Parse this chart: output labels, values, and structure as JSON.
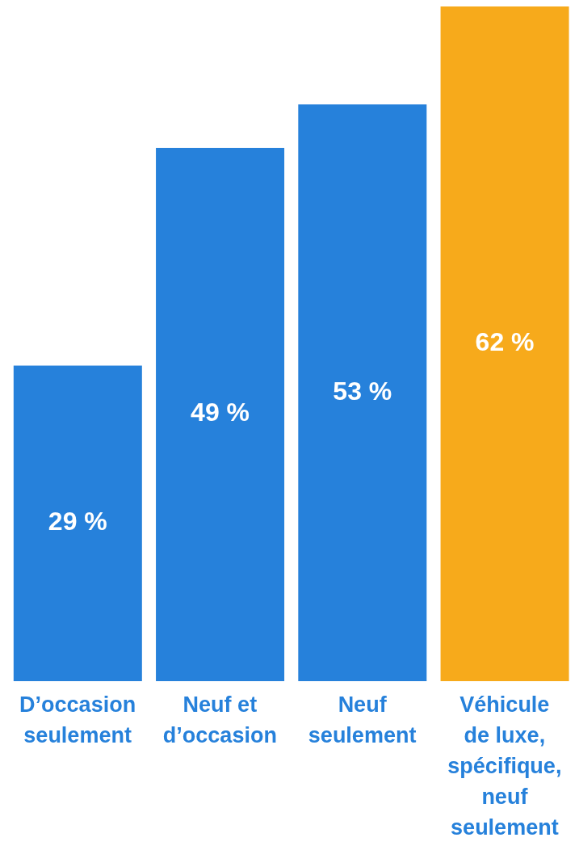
{
  "chart_data": {
    "type": "bar",
    "categories": [
      "D’occasion seulement",
      "Neuf et d’occasion",
      "Neuf seulement",
      "Véhicule de luxe, spécifique, neuf seulement"
    ],
    "values": [
      29,
      49,
      53,
      62
    ],
    "colors": [
      "#2681db",
      "#2681db",
      "#2681db",
      "#f7aa1b"
    ],
    "value_labels": [
      "29 %",
      "49 %",
      "53 %",
      "62 %"
    ],
    "grid": false,
    "legend": false
  }
}
